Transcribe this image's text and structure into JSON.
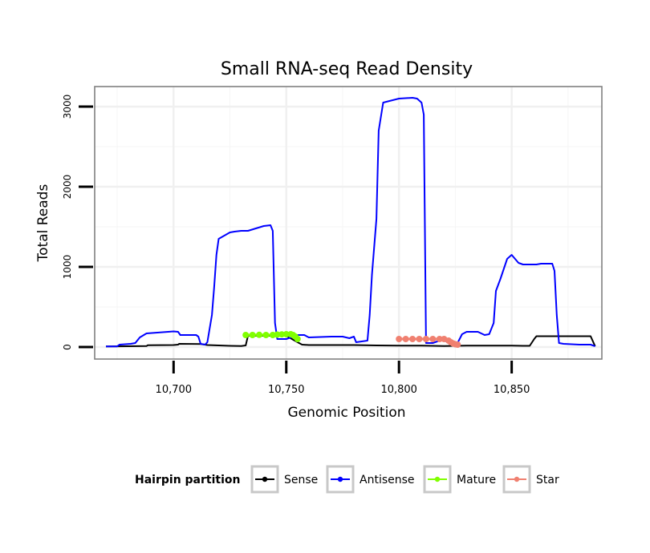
{
  "chart_data": {
    "type": "line",
    "title": "Small RNA-seq Read Density",
    "xlabel": "Genomic Position",
    "ylabel": "Total Reads",
    "xlim": [
      10665,
      10890
    ],
    "ylim": [
      -150,
      3250
    ],
    "x_ticks": [
      {
        "value": 10700,
        "label": "10,700"
      },
      {
        "value": 10750,
        "label": "10,750"
      },
      {
        "value": 10800,
        "label": "10,800"
      },
      {
        "value": 10850,
        "label": "10,850"
      }
    ],
    "y_ticks": [
      {
        "value": 0,
        "label": "0"
      },
      {
        "value": 1000,
        "label": "1000"
      },
      {
        "value": 2000,
        "label": "2000"
      },
      {
        "value": 3000,
        "label": "3000"
      }
    ],
    "grid": true,
    "legend_title": "Hairpin partition",
    "legend_position": "bottom",
    "series": [
      {
        "name": "Sense",
        "color": "#000000",
        "x": [
          10670,
          10680,
          10688,
          10688.5,
          10700,
          10702,
          10702.5,
          10712,
          10715,
          10725,
          10730,
          10732,
          10733,
          10740,
          10750,
          10755,
          10757,
          10760,
          10770,
          10780,
          10790,
          10800,
          10810,
          10815,
          10820,
          10830,
          10840,
          10850,
          10855,
          10858,
          10860,
          10861,
          10870,
          10880,
          10885,
          10887
        ],
        "y": [
          8,
          10,
          12,
          22,
          25,
          30,
          40,
          38,
          25,
          15,
          12,
          20,
          140,
          140,
          140,
          60,
          30,
          25,
          25,
          25,
          20,
          18,
          18,
          15,
          12,
          18,
          18,
          18,
          15,
          15,
          100,
          135,
          135,
          135,
          135,
          10
        ]
      },
      {
        "name": "Antisense",
        "color": "#0000ff",
        "x": [
          10670,
          10675,
          10676,
          10681,
          10683,
          10685,
          10688,
          10700,
          10702,
          10703,
          10710,
          10711,
          10712,
          10714,
          10715,
          10717,
          10718,
          10719,
          10720,
          10725,
          10727,
          10730,
          10733,
          10740,
          10743,
          10744,
          10745,
          10746,
          10750,
          10752,
          10755,
          10758,
          10760,
          10770,
          10775,
          10778,
          10780,
          10781,
          10786,
          10787,
          10788,
          10790,
          10791,
          10793,
          10800,
          10806,
          10808,
          10810,
          10811,
          10812,
          10815,
          10818,
          10820,
          10822,
          10824,
          10825,
          10826,
          10828,
          10830,
          10835,
          10838,
          10840,
          10842,
          10843,
          10845,
          10848,
          10850,
          10853,
          10855,
          10861,
          10863,
          10865,
          10868,
          10869,
          10870,
          10871,
          10873,
          10880,
          10882,
          10885,
          10887
        ],
        "y": [
          8,
          8,
          30,
          40,
          50,
          120,
          170,
          195,
          190,
          150,
          150,
          130,
          40,
          30,
          60,
          400,
          750,
          1150,
          1350,
          1430,
          1440,
          1450,
          1450,
          1510,
          1520,
          1450,
          300,
          100,
          100,
          120,
          150,
          150,
          120,
          130,
          130,
          110,
          130,
          60,
          80,
          400,
          900,
          1600,
          2700,
          3050,
          3100,
          3110,
          3100,
          3050,
          2900,
          50,
          50,
          80,
          80,
          60,
          60,
          50,
          50,
          160,
          190,
          190,
          150,
          160,
          300,
          700,
          850,
          1100,
          1150,
          1050,
          1030,
          1030,
          1040,
          1040,
          1040,
          950,
          400,
          50,
          40,
          30,
          30,
          30,
          10
        ]
      },
      {
        "name": "Mature",
        "color": "#80ff00",
        "x": [
          10732,
          10735,
          10738,
          10741,
          10744,
          10746,
          10748,
          10750,
          10752,
          10753,
          10754,
          10755
        ],
        "y": [
          150,
          150,
          152,
          150,
          150,
          155,
          158,
          160,
          160,
          150,
          130,
          100
        ]
      },
      {
        "name": "Star",
        "color": "#f08070",
        "x": [
          10800,
          10803,
          10806,
          10809,
          10812,
          10815,
          10818,
          10820,
          10822,
          10823,
          10824,
          10825,
          10826
        ],
        "y": [
          100,
          100,
          100,
          100,
          100,
          100,
          100,
          100,
          80,
          60,
          45,
          35,
          30
        ]
      }
    ]
  }
}
